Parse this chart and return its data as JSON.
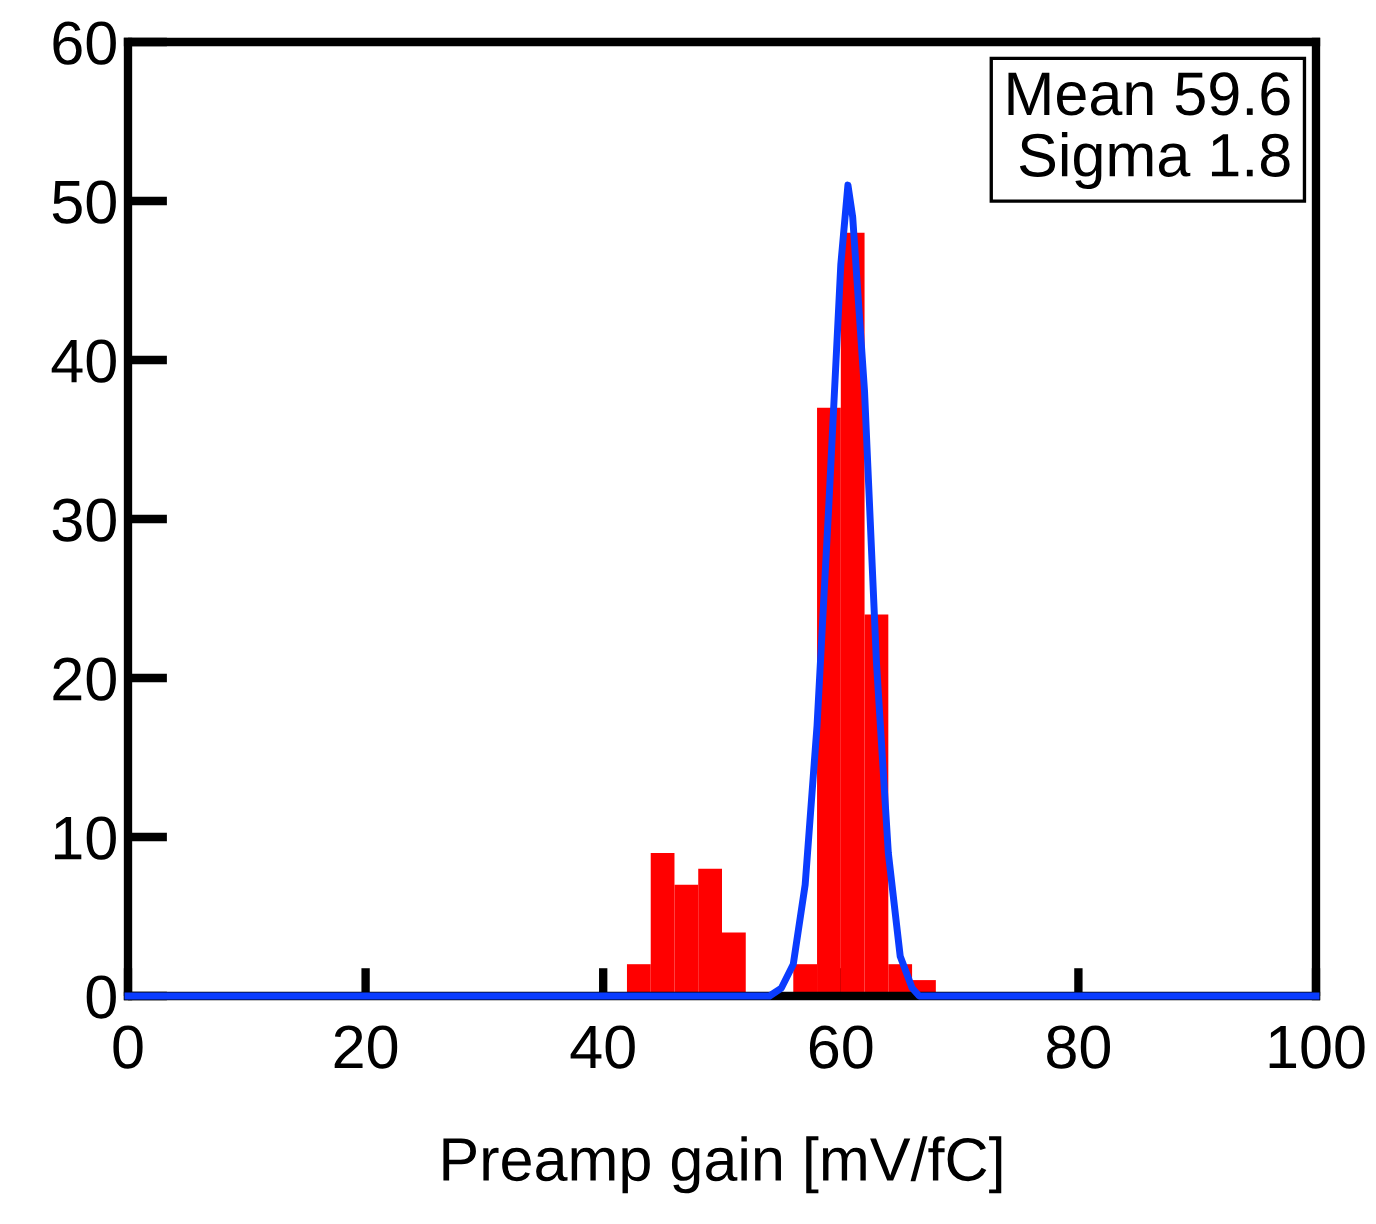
{
  "chart_data": {
    "type": "histogram",
    "xlabel": "Preamp gain [mV/fC]",
    "bins": [
      42,
      44,
      46,
      48,
      50,
      52,
      54,
      56,
      58,
      60,
      62,
      64,
      66,
      68
    ],
    "values": [
      2,
      9,
      7,
      8,
      4,
      0,
      0,
      2,
      37,
      48,
      24,
      2,
      1
    ],
    "color": "#ff0000",
    "series": [
      {
        "type": "line",
        "color": "#0a3cff",
        "x": [
          0,
          54,
          55,
          56,
          57,
          58,
          59,
          60,
          60.6,
          61,
          62,
          63,
          64,
          65,
          66,
          66.6,
          100
        ],
        "values": [
          0,
          0,
          0.5,
          2,
          7,
          17,
          31,
          46,
          51,
          49,
          38,
          21,
          9,
          2.5,
          0.5,
          0,
          0
        ]
      }
    ],
    "annotations": [
      "Mean 59.6\nSigma 1.8"
    ],
    "xlim": [
      0,
      100
    ],
    "ylim": [
      0,
      60
    ],
    "xticks": [
      0,
      20,
      40,
      60,
      80,
      100
    ],
    "yticks": [
      0,
      10,
      20,
      30,
      40,
      50,
      60
    ],
    "grid": false,
    "legend": false
  }
}
